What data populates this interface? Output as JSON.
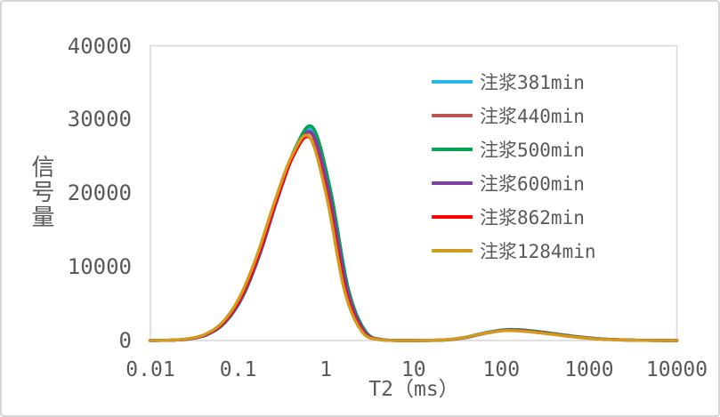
{
  "panel": {
    "background": "#ffffff",
    "border_color": "#d6d6d6",
    "text_color": "#595959",
    "axis_line_color": "#d9d9d9"
  },
  "chart_data": {
    "type": "line",
    "title": "",
    "xlabel": "T2（ms）",
    "ylabel": "信号量",
    "x_scale": "log",
    "xlim": [
      0.01,
      10000
    ],
    "ylim": [
      0,
      40000
    ],
    "grid": false,
    "legend_position": "inside-top-right",
    "x_ticks": [
      0.01,
      0.1,
      1,
      10,
      100,
      1000,
      10000
    ],
    "x_tick_labels": [
      "0.01",
      "0.1",
      "1",
      "10",
      "100",
      "1000",
      "10000"
    ],
    "y_ticks": [
      0,
      10000,
      20000,
      30000,
      40000
    ],
    "y_tick_labels": [
      "0",
      "10000",
      "20000",
      "30000",
      "40000"
    ],
    "series": [
      {
        "name": "注浆381min",
        "color": "#29b5e8",
        "z": 1,
        "x": [
          0.01,
          0.0112,
          0.0177,
          0.0281,
          0.0445,
          0.0705,
          0.112,
          0.177,
          0.281,
          0.445,
          0.705,
          1.12,
          1.77,
          2.81,
          4.45,
          7.05,
          20.4,
          36.3,
          64.6,
          114.8,
          204,
          363,
          646,
          1148,
          2041,
          3630,
          6455,
          10000
        ],
        "y": [
          0,
          10,
          51,
          226,
          814,
          2415,
          5878,
          11737,
          19234,
          25863,
          28550,
          20173,
          7121,
          1253,
          110,
          5,
          66,
          374,
          1060,
          1500,
          1353,
          992,
          592,
          287,
          113,
          36,
          9,
          2
        ]
      },
      {
        "name": "注浆440min",
        "color": "#bc544f",
        "z": 0,
        "x": [
          0.01,
          0.0109,
          0.0173,
          0.0274,
          0.0435,
          0.0689,
          0.109,
          0.173,
          0.274,
          0.435,
          0.689,
          1.09,
          1.73,
          2.74,
          4.35,
          6.89,
          20.9,
          37.2,
          66.1,
          117.5,
          209,
          372,
          661,
          1175,
          2089,
          3714,
          6607,
          10000
        ],
        "y": [
          0,
          9,
          50,
          221,
          798,
          2369,
          5765,
          11511,
          18864,
          25365,
          28000,
          19785,
          6983,
          1229,
          108,
          5,
          61,
          349,
          989,
          1400,
          1263,
          926,
          552,
          268,
          106,
          34,
          9,
          2
        ]
      },
      {
        "name": "注浆500min",
        "color": "#00a651",
        "z": 2,
        "x": [
          0.01,
          0.0113,
          0.0179,
          0.0283,
          0.0449,
          0.0711,
          0.113,
          0.179,
          0.283,
          0.449,
          0.711,
          1.13,
          1.79,
          2.83,
          4.49,
          7.11,
          21.4,
          38,
          67.6,
          120.2,
          214,
          380,
          676,
          1202,
          2137,
          3801,
          6759,
          10000
        ],
        "y": [
          0,
          10,
          52,
          228,
          824,
          2445,
          5951,
          11881,
          19470,
          26181,
          28900,
          20421,
          7208,
          1269,
          112,
          5,
          65,
          369,
          1046,
          1480,
          1335,
          979,
          584,
          283,
          112,
          36,
          9,
          2
        ]
      },
      {
        "name": "注浆600min",
        "color": "#7e3fa0",
        "z": 3,
        "x": [
          0.01,
          0.011,
          0.0175,
          0.0277,
          0.0439,
          0.0695,
          0.11,
          0.175,
          0.277,
          0.439,
          0.695,
          1.1,
          1.75,
          2.77,
          4.39,
          6.95,
          20.4,
          36.3,
          64.6,
          114.8,
          204,
          363,
          646,
          1148,
          2041,
          3630,
          6455,
          10000
        ],
        "y": [
          0,
          9,
          51,
          222,
          802,
          2381,
          5796,
          11572,
          18965,
          25501,
          28150,
          19891,
          7021,
          1236,
          109,
          5,
          62,
          354,
          1003,
          1420,
          1281,
          939,
          560,
          272,
          107,
          35,
          9,
          2
        ]
      },
      {
        "name": "注浆862min",
        "color": "#fe0000",
        "z": 4,
        "x": [
          0.01,
          0.0105,
          0.0167,
          0.0264,
          0.0419,
          0.0664,
          0.105,
          0.167,
          0.264,
          0.419,
          0.664,
          1.05,
          1.67,
          2.64,
          4.19,
          6.64,
          19.9,
          35.5,
          63.1,
          112.2,
          199.5,
          355,
          631,
          1122,
          1995,
          3548,
          6310,
          10000
        ],
        "y": [
          0,
          9,
          49,
          217,
          782,
          2322,
          5652,
          11285,
          18493,
          24867,
          27450,
          19396,
          6846,
          1205,
          106,
          5,
          61,
          344,
          975,
          1380,
          1244,
          913,
          545,
          264,
          104,
          34,
          9,
          2
        ]
      },
      {
        "name": "注浆1284min",
        "color": "#d19b1e",
        "z": 5,
        "x": [
          0.01,
          0.0102,
          0.0162,
          0.0257,
          0.0408,
          0.0646,
          0.102,
          0.162,
          0.257,
          0.408,
          0.646,
          1.02,
          1.62,
          2.57,
          4.08,
          6.46,
          19.5,
          34.7,
          61.6,
          109.6,
          194.9,
          347,
          616,
          1096,
          1949,
          3466,
          6163,
          10000
        ],
        "y": [
          0,
          9,
          50,
          218,
          788,
          2339,
          5693,
          11367,
          18628,
          25048,
          27650,
          19537,
          6896,
          1214,
          107,
          5,
          59,
          337,
          954,
          1350,
          1217,
          893,
          533,
          259,
          102,
          33,
          9,
          2
        ]
      }
    ]
  }
}
